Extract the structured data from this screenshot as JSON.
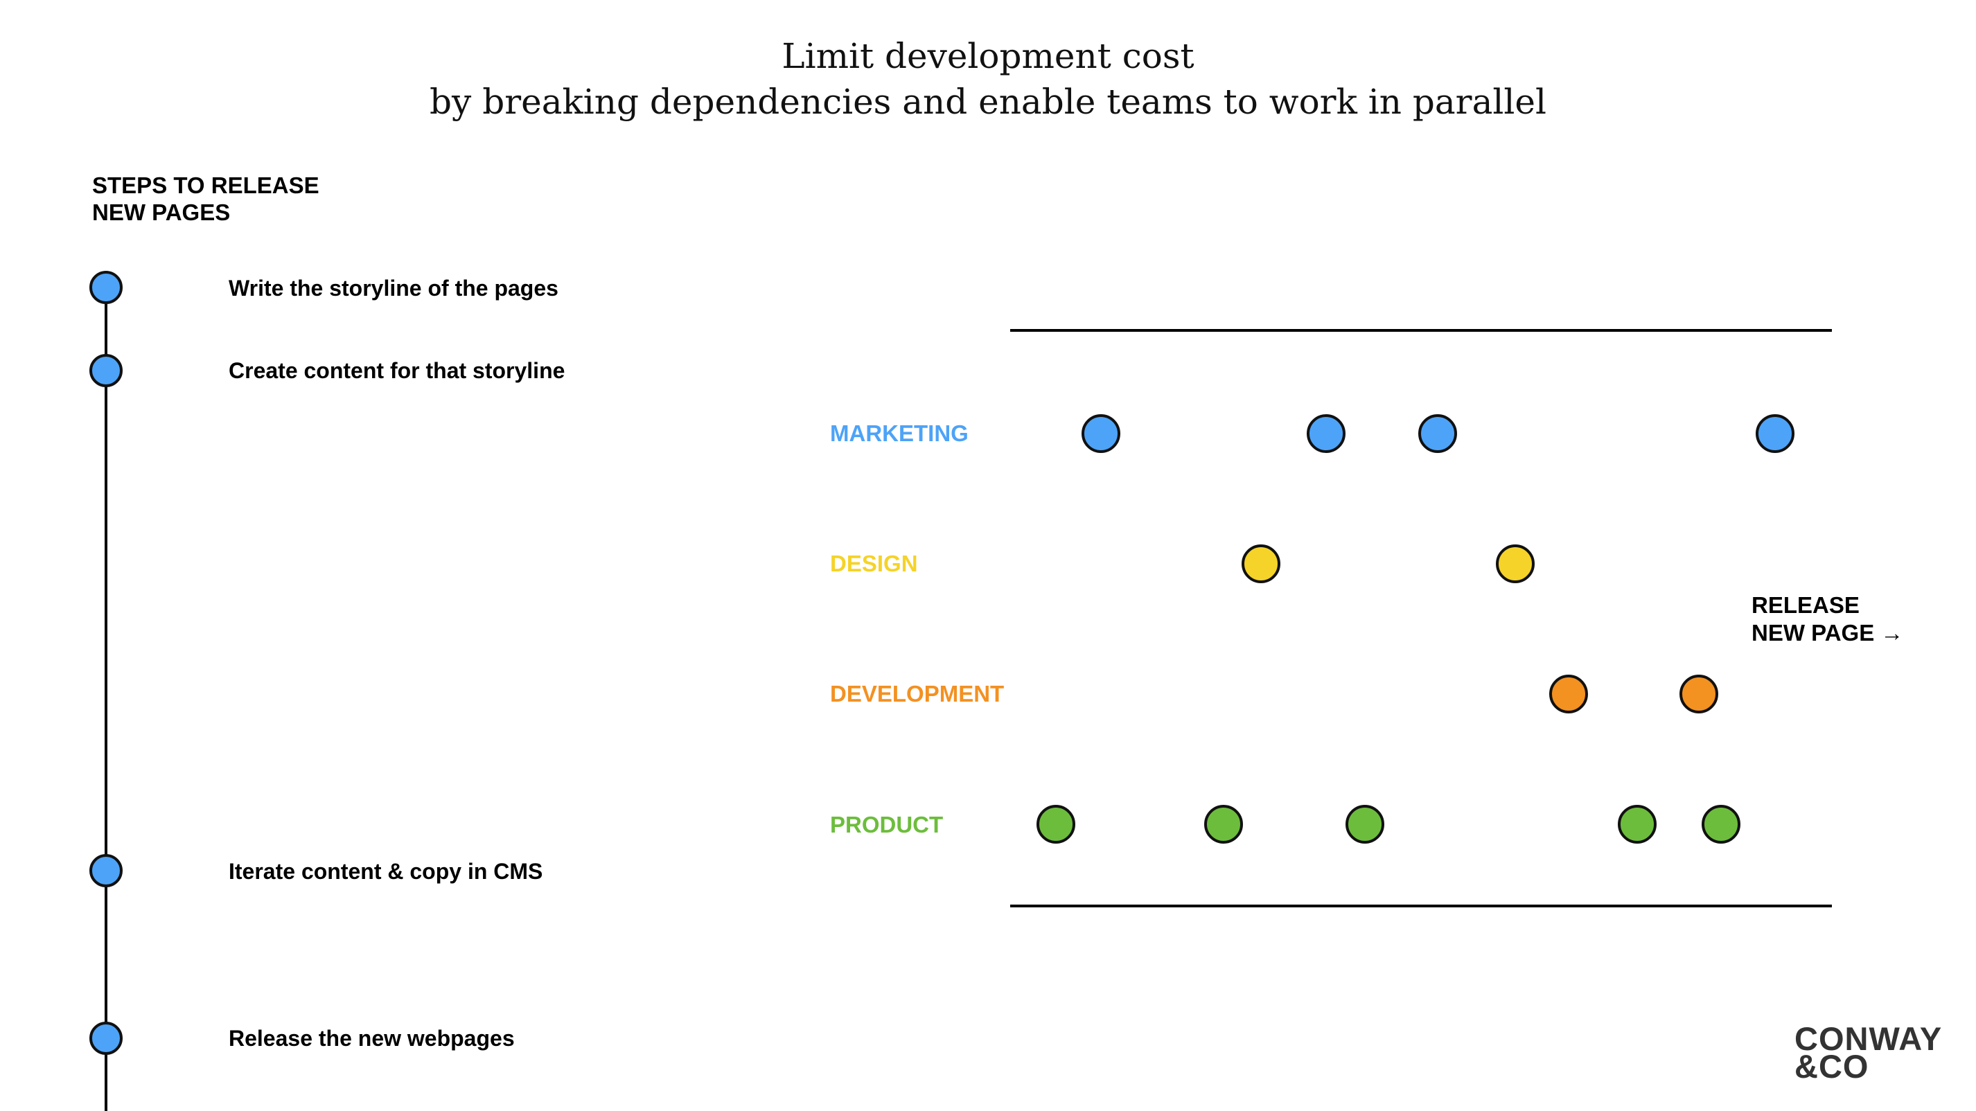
{
  "title": {
    "line1": "Limit development cost",
    "line2": "by breaking dependencies and enable teams to work in parallel"
  },
  "steps": {
    "heading_line1": "STEPS TO RELEASE",
    "heading_line2": "NEW PAGES",
    "items": [
      {
        "label": "Write the storyline of the pages"
      },
      {
        "label": "Create content for that storyline"
      },
      {
        "label": "Iterate content & copy in CMS"
      },
      {
        "label": "Release the new webpages"
      }
    ],
    "dot_color": "#4da3f7"
  },
  "teams": [
    {
      "name": "MARKETING",
      "color": "#4da3f7",
      "count": 4
    },
    {
      "name": "DESIGN",
      "color": "#f5d328",
      "count": 2
    },
    {
      "name": "DEVELOPMENT",
      "color": "#f39121",
      "count": 2
    },
    {
      "name": "PRODUCT",
      "color": "#6cbd3c",
      "count": 5
    }
  ],
  "release": {
    "line1": "RELEASE",
    "line2": "NEW PAGE →"
  },
  "logo": {
    "line1": "CONWAY",
    "line2": "&CO"
  }
}
